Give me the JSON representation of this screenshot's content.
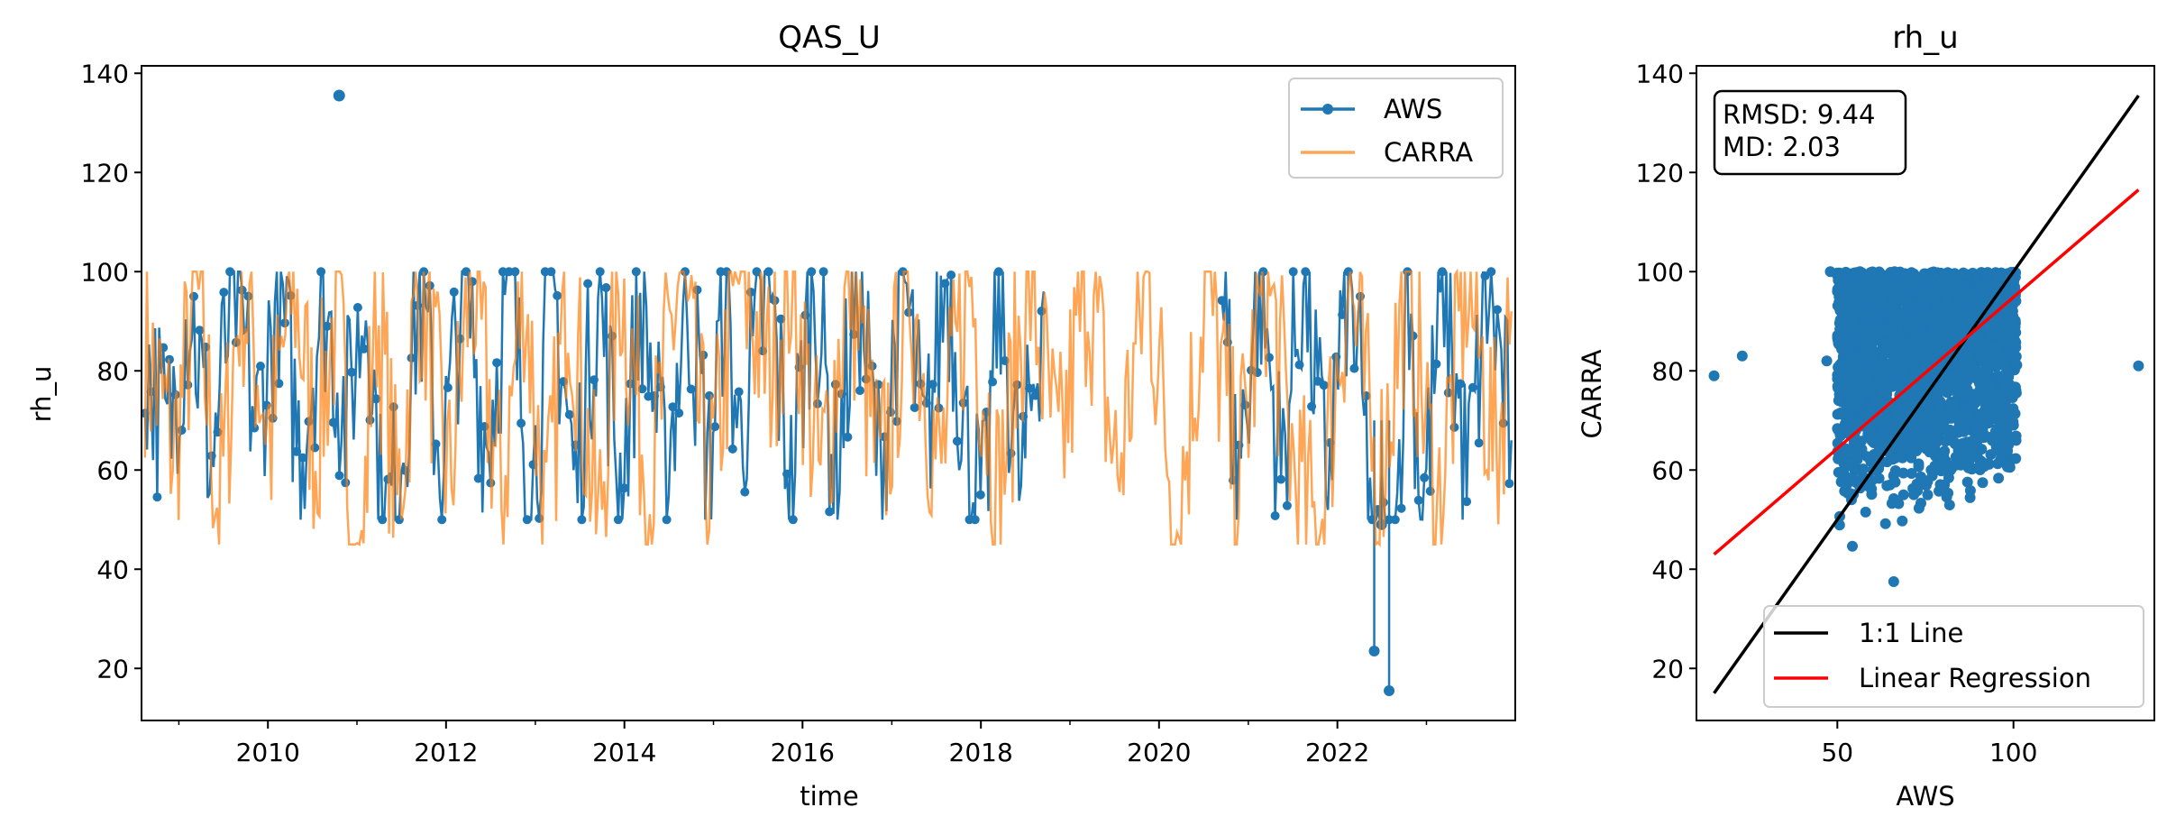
{
  "chart_data": [
    {
      "type": "line",
      "title": "QAS_U",
      "xlabel": "time",
      "ylabel": "rh_u",
      "xlim": [
        "2008-08-01",
        "2023-12-31"
      ],
      "ylim": [
        9.5,
        141.5
      ],
      "xticks": [
        "2010",
        "2012",
        "2014",
        "2016",
        "2018",
        "2020",
        "2022"
      ],
      "yticks": [
        20,
        40,
        60,
        80,
        100,
        120,
        140
      ],
      "legend": {
        "placement": "upper-right",
        "entries": [
          "AWS",
          "CARRA"
        ]
      },
      "grid": false,
      "colors": {
        "AWS": "#1f77b4",
        "CARRA": "#ff7f0e"
      },
      "series": [
        {
          "name": "AWS",
          "style": "line-with-markers",
          "data": [
            [
              "2008-08",
              83
            ],
            [
              "2008-11",
              66
            ],
            [
              "2009-02",
              95
            ],
            [
              "2009-05",
              61
            ],
            [
              "2009-08",
              99
            ],
            [
              "2009-11",
              68
            ],
            [
              "2010-02",
              97
            ],
            [
              "2010-05",
              63
            ],
            [
              "2010-08",
              96
            ],
            [
              "2010-10-20",
              135.5
            ],
            [
              "2010-11",
              70
            ],
            [
              "2011-02",
              97
            ],
            [
              "2011-04",
              46.5
            ],
            [
              "2011-06",
              58
            ],
            [
              "2011-09",
              96
            ],
            [
              "2011-12",
              60
            ],
            [
              "2012-03",
              100
            ],
            [
              "2012-06",
              65
            ],
            [
              "2012-09",
              99
            ],
            [
              "2012-12",
              54
            ],
            [
              "2013-03",
              98
            ],
            [
              "2013-06",
              56
            ],
            [
              "2013-09",
              97
            ],
            [
              "2013-12",
              58
            ],
            [
              "2014-03",
              95
            ],
            [
              "2014-06",
              57
            ],
            [
              "2014-09",
              96
            ],
            [
              "2014-12",
              60
            ],
            [
              "2015-02",
              98
            ],
            [
              "2015-04",
              66
            ],
            [
              "2015-08",
              97
            ],
            [
              "2015-11",
              57
            ],
            [
              "2016-02",
              100
            ],
            [
              "2016-05",
              59
            ],
            [
              "2016-08",
              98
            ],
            [
              "2016-11",
              58
            ],
            [
              "2017-02",
              101
            ],
            [
              "2017-05",
              62
            ],
            [
              "2017-08",
              100
            ],
            [
              "2017-11",
              60
            ],
            [
              "2018-01",
              51
            ],
            [
              "2018-03",
              97
            ],
            [
              "2018-06",
              55
            ],
            [
              "2018-09",
              96
            ],
            [
              "2020-09",
              100
            ],
            [
              "2020-11",
              58
            ],
            [
              "2021-02",
              99
            ],
            [
              "2021-05",
              60
            ],
            [
              "2021-08",
              100
            ],
            [
              "2021-11",
              58
            ],
            [
              "2022-02",
              100
            ],
            [
              "2022-05",
              55
            ],
            [
              "2022-06-01",
              23.5
            ],
            [
              "2022-07-01",
              49
            ],
            [
              "2022-08-01",
              15.5
            ],
            [
              "2022-10",
              100
            ],
            [
              "2022-12",
              51
            ],
            [
              "2023-03",
              99
            ],
            [
              "2023-06",
              58
            ],
            [
              "2023-09",
              98
            ],
            [
              "2023-12",
              66
            ]
          ]
        },
        {
          "name": "CARRA",
          "style": "line",
          "data": [
            [
              "2008-08",
              85
            ],
            [
              "2008-12",
              64
            ],
            [
              "2009-03",
              97
            ],
            [
              "2009-06",
              51.5
            ],
            [
              "2009-09",
              99
            ],
            [
              "2010-01",
              66
            ],
            [
              "2010-04",
              99
            ],
            [
              "2010-07",
              64
            ],
            [
              "2010-10",
              95
            ],
            [
              "2010-12",
              43
            ],
            [
              "2011-01-20",
              37
            ],
            [
              "2011-03",
              98
            ],
            [
              "2011-06",
              52
            ],
            [
              "2011-09",
              99
            ],
            [
              "2012-01",
              57
            ],
            [
              "2012-04",
              100
            ],
            [
              "2012-08",
              53
            ],
            [
              "2012-11",
              99
            ],
            [
              "2013-02",
              47
            ],
            [
              "2013-05",
              100
            ],
            [
              "2013-09",
              47
            ],
            [
              "2013-12",
              100
            ],
            [
              "2014-04",
              55
            ],
            [
              "2014-08",
              100
            ],
            [
              "2014-12",
              55
            ],
            [
              "2015-04",
              100
            ],
            [
              "2015-08",
              80
            ],
            [
              "2015-11",
              100
            ],
            [
              "2016-03",
              57
            ],
            [
              "2016-07",
              100
            ],
            [
              "2016-11",
              56
            ],
            [
              "2017-03",
              100
            ],
            [
              "2017-07",
              58
            ],
            [
              "2017-11",
              100
            ],
            [
              "2018-03",
              54
            ],
            [
              "2018-07",
              100
            ],
            [
              "2018-11",
              60
            ],
            [
              "2019-03",
              100
            ],
            [
              "2019-07",
              58
            ],
            [
              "2019-11",
              100
            ],
            [
              "2020-03",
              48.5
            ],
            [
              "2020-07",
              100
            ],
            [
              "2020-11",
              57
            ],
            [
              "2021-03",
              100
            ],
            [
              "2021-07",
              58
            ],
            [
              "2021-10",
              46
            ],
            [
              "2022-02",
              100
            ],
            [
              "2022-06",
              55
            ],
            [
              "2022-10",
              100
            ],
            [
              "2023-02",
              50
            ],
            [
              "2023-06",
              100
            ],
            [
              "2023-10",
              62
            ],
            [
              "2023-12",
              92
            ]
          ]
        }
      ]
    },
    {
      "type": "scatter",
      "title": "rh_u",
      "xlabel": "AWS",
      "ylabel": "CARRA",
      "xlim": [
        10,
        140
      ],
      "ylim": [
        9.5,
        141.5
      ],
      "xticks": [
        50,
        100
      ],
      "yticks": [
        20,
        40,
        60,
        80,
        100,
        120,
        140
      ],
      "annotation": [
        "RMSD: 9.44",
        "MD: 2.03"
      ],
      "legend": {
        "placement": "lower-right",
        "entries": [
          "1:1 Line",
          "Linear Regression"
        ]
      },
      "grid": false,
      "colors": {
        "points": "#1f77b4",
        "one_to_one": "#000000",
        "regression": "#ff0000"
      },
      "outlier_points": [
        [
          15,
          79
        ],
        [
          23,
          83
        ],
        [
          48,
          100
        ],
        [
          47,
          82
        ],
        [
          135.5,
          81
        ],
        [
          66,
          37.5
        ]
      ],
      "point_cloud": {
        "x_range": [
          50,
          101
        ],
        "y_range": [
          42,
          100
        ]
      },
      "one_to_one_line": [
        [
          15,
          15
        ],
        [
          135.5,
          135.5
        ]
      ],
      "regression_line": [
        [
          15,
          43
        ],
        [
          135.5,
          116.5
        ]
      ]
    }
  ]
}
